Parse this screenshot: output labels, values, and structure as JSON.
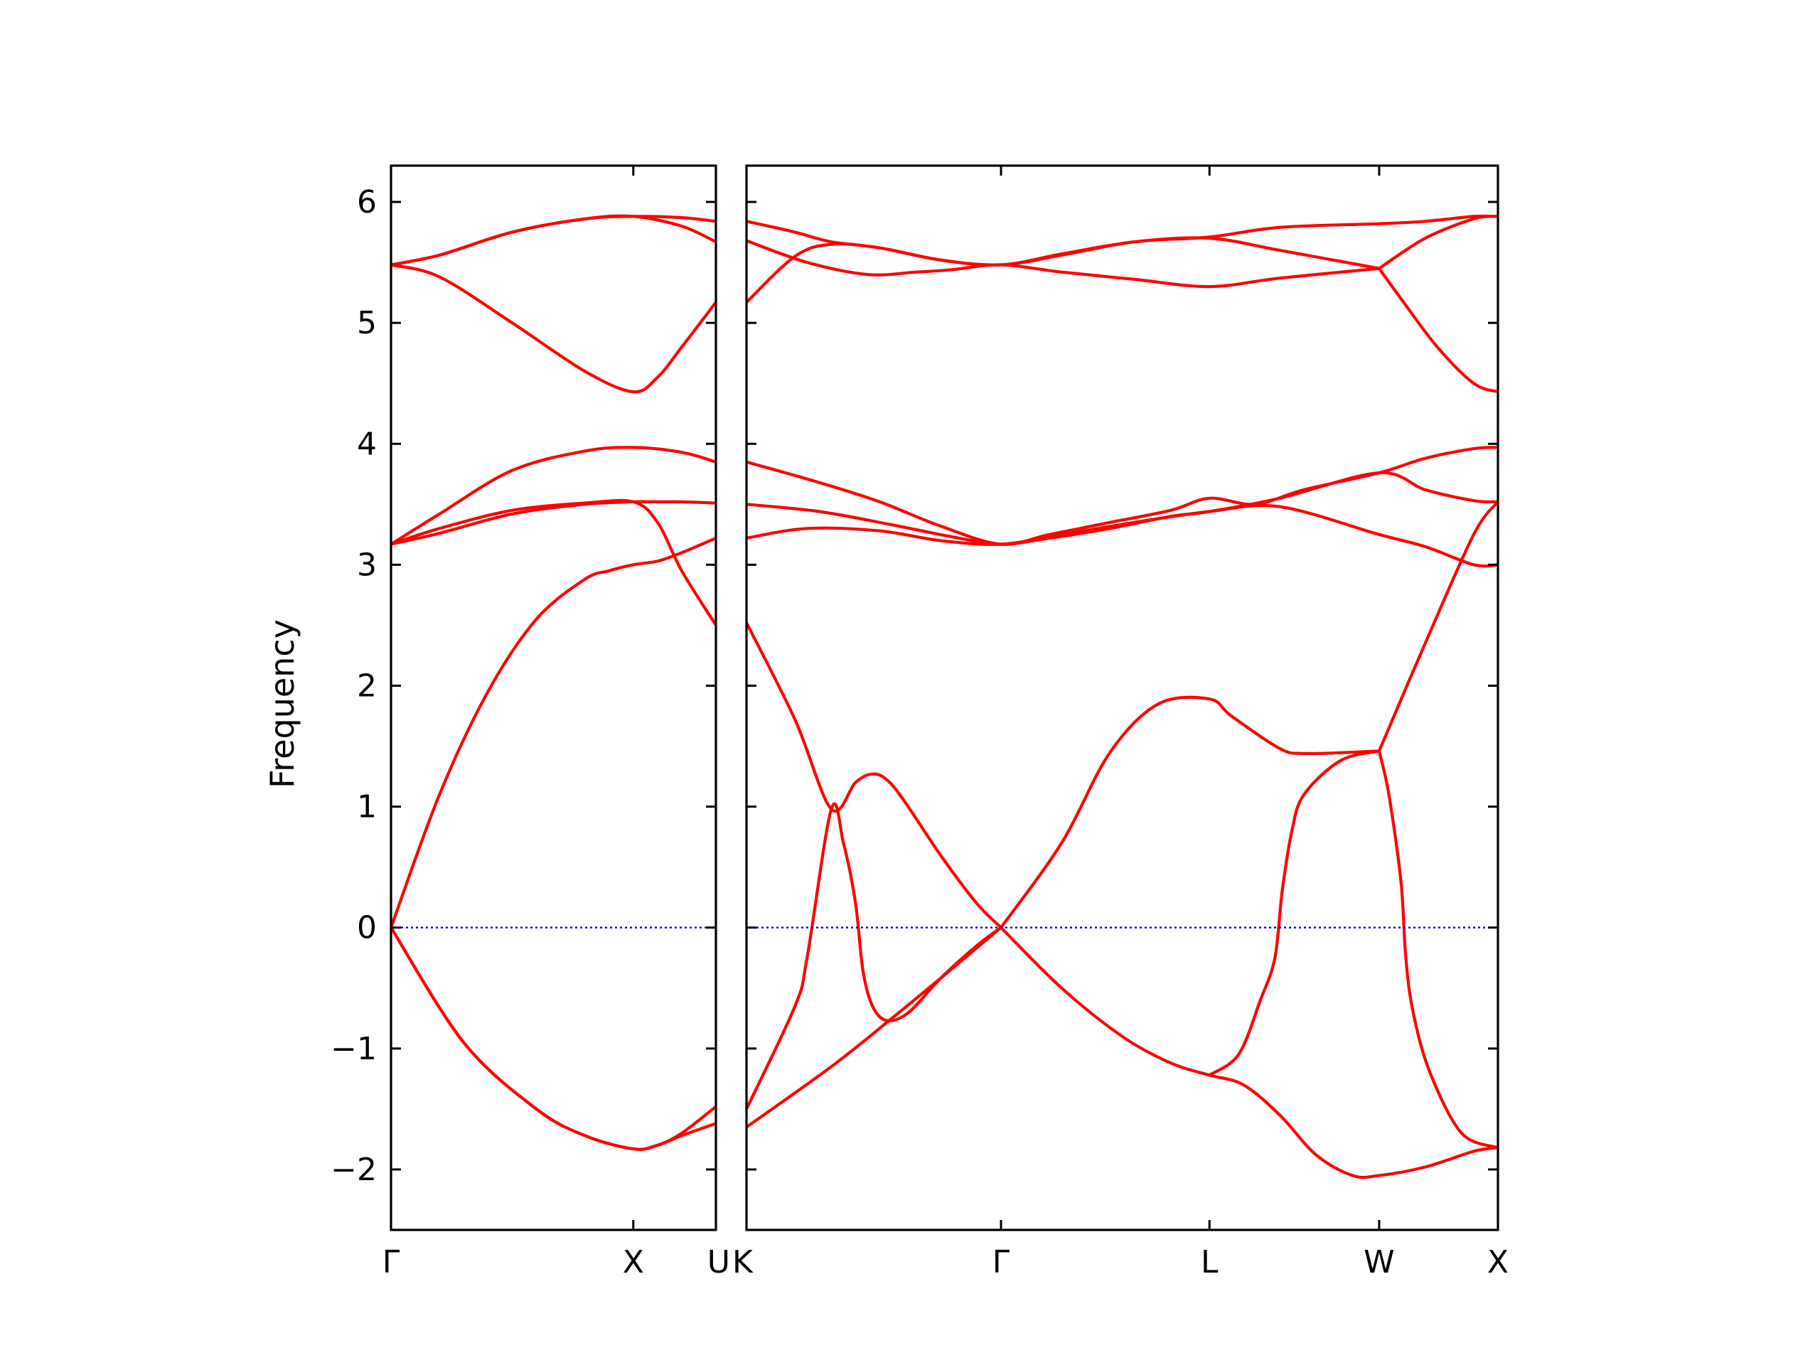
{
  "chart_data": {
    "type": "line",
    "title": "",
    "ylabel": "Frequency",
    "xlabel": "",
    "ylim": [
      -2.5,
      6.3
    ],
    "yticks": [
      -2,
      -1,
      0,
      1,
      2,
      3,
      4,
      5,
      6
    ],
    "ytick_labels": [
      "−2",
      "−1",
      "0",
      "1",
      "2",
      "3",
      "4",
      "5",
      "6"
    ],
    "grid": false,
    "legend": "none",
    "colors": {
      "bands": "#ff0000",
      "zero_line": "#0000cc",
      "axes": "#000000"
    },
    "panels": [
      {
        "x_range": [
          0,
          1.341
        ],
        "ticks": [
          {
            "x": 0,
            "label": "Γ"
          },
          {
            "x": 1.0,
            "label": "X"
          },
          {
            "x": 1.341,
            "label": "U"
          }
        ],
        "bands": [
          {
            "name": "",
            "x": [
              0,
              0.3,
              0.6,
              0.8,
              1.0,
              1.1,
              1.2,
              1.341
            ],
            "y": [
              0,
              -0.95,
              -1.5,
              -1.72,
              -1.83,
              -1.8,
              -1.72,
              -1.62
            ]
          },
          {
            "name": "",
            "x": [
              0,
              0.3,
              0.6,
              0.8,
              1.0,
              1.1,
              1.2,
              1.341
            ],
            "y": [
              0,
              -0.95,
              -1.5,
              -1.72,
              -1.83,
              -1.8,
              -1.7,
              -1.48
            ]
          },
          {
            "name": "",
            "x": [
              0,
              0.2,
              0.4,
              0.6,
              0.8,
              0.9,
              1.0,
              1.1,
              1.2,
              1.341
            ],
            "y": [
              0,
              1.1,
              1.95,
              2.55,
              2.88,
              2.95,
              3.0,
              3.03,
              3.1,
              3.22
            ]
          },
          {
            "name": "",
            "x": [
              0,
              0.2,
              0.5,
              0.8,
              1.0,
              1.1,
              1.2,
              1.341
            ],
            "y": [
              3.17,
              3.3,
              3.45,
              3.51,
              3.52,
              3.35,
              2.95,
              2.5
            ]
          },
          {
            "name": "",
            "x": [
              0,
              0.2,
              0.5,
              0.8,
              1.0,
              1.1,
              1.2,
              1.341
            ],
            "y": [
              3.17,
              3.26,
              3.42,
              3.5,
              3.52,
              3.52,
              3.52,
              3.51
            ]
          },
          {
            "name": "",
            "x": [
              0,
              0.2,
              0.5,
              0.8,
              1.0,
              1.2,
              1.341
            ],
            "y": [
              3.17,
              3.42,
              3.78,
              3.94,
              3.97,
              3.93,
              3.85
            ]
          },
          {
            "name": "",
            "x": [
              0,
              0.2,
              0.5,
              0.8,
              1.0,
              1.1,
              1.2,
              1.341
            ],
            "y": [
              5.48,
              5.38,
              5.0,
              4.6,
              4.43,
              4.55,
              4.8,
              5.17
            ]
          },
          {
            "name": "",
            "x": [
              0,
              0.2,
              0.5,
              0.8,
              1.0,
              1.2,
              1.341
            ],
            "y": [
              5.48,
              5.56,
              5.75,
              5.86,
              5.88,
              5.8,
              5.67
            ]
          },
          {
            "name": "",
            "x": [
              0,
              0.2,
              0.5,
              0.8,
              1.0,
              1.2,
              1.341
            ],
            "y": [
              5.48,
              5.56,
              5.75,
              5.86,
              5.88,
              5.87,
              5.84
            ]
          },
          {
            "name": "",
            "x": [
              0,
              1.341
            ],
            "y": [
              0,
              0
            ],
            "style": "zero"
          }
        ]
      },
      {
        "x_range": [
          0,
          3.1
        ],
        "ticks": [
          {
            "x": 0,
            "label": "K"
          },
          {
            "x": 1.05,
            "label": "Γ"
          },
          {
            "x": 1.91,
            "label": "L"
          },
          {
            "x": 2.61,
            "label": "W"
          },
          {
            "x": 3.1,
            "label": "X"
          }
        ],
        "bands": [
          {
            "name": "",
            "x": [
              0,
              0.35,
              0.6,
              0.8,
              1.05
            ],
            "y": [
              -1.65,
              -1.15,
              -0.75,
              -0.42,
              0
            ]
          },
          {
            "name": "",
            "x": [
              0,
              0.2,
              0.25,
              0.35,
              0.4,
              0.45,
              0.48,
              0.52,
              0.58,
              0.67,
              0.8,
              0.95,
              1.05
            ],
            "y": [
              -1.5,
              -0.65,
              -0.25,
              0.98,
              0.7,
              0.2,
              -0.35,
              -0.65,
              -0.77,
              -0.7,
              -0.42,
              -0.15,
              0
            ]
          },
          {
            "name": "",
            "x": [
              0,
              0.2,
              0.35,
              0.45,
              0.52,
              0.58,
              0.65,
              0.8,
              0.95,
              1.05
            ],
            "y": [
              2.52,
              1.72,
              0.98,
              1.2,
              1.27,
              1.22,
              1.05,
              0.6,
              0.2,
              0
            ]
          },
          {
            "name": "",
            "x": [
              1.05,
              1.3,
              1.55,
              1.75,
              1.91,
              2.05,
              2.2,
              2.35,
              2.5,
              2.61,
              2.8,
              3.0,
              3.1
            ],
            "y": [
              0,
              -0.5,
              -0.9,
              -1.12,
              -1.22,
              -1.3,
              -1.55,
              -1.88,
              -2.05,
              -2.05,
              -1.98,
              -1.85,
              -1.82
            ]
          },
          {
            "name": "",
            "x": [
              1.05,
              1.3,
              1.5,
              1.7,
              1.91,
              2.0,
              2.2,
              2.3,
              2.5,
              2.61
            ],
            "y": [
              0,
              0.7,
              1.45,
              1.85,
              1.89,
              1.75,
              1.48,
              1.44,
              1.45,
              1.46
            ]
          },
          {
            "name": "",
            "x": [
              1.91,
              2.03,
              2.12,
              2.18,
              2.21,
              2.25,
              2.3,
              2.45,
              2.61
            ],
            "y": [
              -1.22,
              -1.05,
              -0.6,
              -0.25,
              0.3,
              0.8,
              1.1,
              1.38,
              1.46
            ]
          },
          {
            "name": "",
            "x": [
              2.61,
              2.65,
              2.7,
              2.72,
              2.75,
              2.82,
              2.95,
              3.1
            ],
            "y": [
              1.46,
              1.1,
              0.38,
              -0.25,
              -0.7,
              -1.2,
              -1.7,
              -1.82
            ]
          },
          {
            "name": "",
            "x": [
              2.61,
              2.8,
              3.0,
              3.1
            ],
            "y": [
              1.46,
              2.35,
              3.25,
              3.52
            ]
          },
          {
            "name": "",
            "x": [
              0,
              0.25,
              0.55,
              0.8,
              1.05,
              1.3,
              1.6,
              1.91,
              2.2,
              2.61,
              2.8,
              3.0,
              3.1
            ],
            "y": [
              3.22,
              3.3,
              3.28,
              3.2,
              3.17,
              3.25,
              3.35,
              3.44,
              3.48,
              3.25,
              3.15,
              3.0,
              3.0
            ]
          },
          {
            "name": "",
            "x": [
              0,
              0.3,
              0.6,
              0.85,
              1.05,
              1.25,
              1.5,
              1.75,
              1.91,
              2.2,
              2.61,
              2.8,
              3.0,
              3.1
            ],
            "y": [
              3.5,
              3.44,
              3.33,
              3.23,
              3.17,
              3.22,
              3.3,
              3.4,
              3.44,
              3.55,
              3.76,
              3.62,
              3.53,
              3.52
            ]
          },
          {
            "name": "",
            "x": [
              0,
              0.3,
              0.55,
              0.8,
              1.05,
              1.25,
              1.5,
              1.75,
              1.91,
              2.1,
              2.3,
              2.61,
              2.8,
              3.0,
              3.1
            ],
            "y": [
              3.85,
              3.68,
              3.52,
              3.32,
              3.17,
              3.25,
              3.35,
              3.45,
              3.55,
              3.5,
              3.62,
              3.76,
              3.88,
              3.96,
              3.97
            ]
          },
          {
            "name": "",
            "x": [
              0,
              0.25,
              0.5,
              0.7,
              0.85,
              1.05,
              1.3,
              1.6,
              1.91,
              2.2,
              2.61
            ],
            "y": [
              5.68,
              5.5,
              5.4,
              5.42,
              5.44,
              5.48,
              5.42,
              5.36,
              5.3,
              5.37,
              5.45
            ]
          },
          {
            "name": "",
            "x": [
              0,
              0.2,
              0.35,
              0.55,
              0.8,
              1.05,
              1.3,
              1.6,
              1.91,
              2.2,
              2.61
            ],
            "y": [
              5.17,
              5.55,
              5.65,
              5.62,
              5.52,
              5.48,
              5.57,
              5.67,
              5.7,
              5.6,
              5.45
            ]
          },
          {
            "name": "",
            "x": [
              0,
              0.2,
              0.35,
              0.55,
              0.8,
              1.05,
              1.3,
              1.6,
              1.91,
              2.2,
              2.61,
              2.8,
              3.0,
              3.1
            ],
            "y": [
              5.84,
              5.75,
              5.67,
              5.62,
              5.52,
              5.48,
              5.56,
              5.67,
              5.71,
              5.79,
              5.82,
              5.84,
              5.88,
              5.88
            ]
          },
          {
            "name": "",
            "x": [
              2.61,
              2.8,
              3.0,
              3.1
            ],
            "y": [
              5.45,
              5.7,
              5.86,
              5.88
            ]
          },
          {
            "name": "",
            "x": [
              2.61,
              2.7,
              2.85,
              3.0,
              3.1
            ],
            "y": [
              5.45,
              5.2,
              4.8,
              4.5,
              4.43
            ]
          },
          {
            "name": "",
            "x": [
              0,
              3.1
            ],
            "y": [
              0,
              0
            ],
            "style": "zero"
          }
        ]
      }
    ]
  }
}
